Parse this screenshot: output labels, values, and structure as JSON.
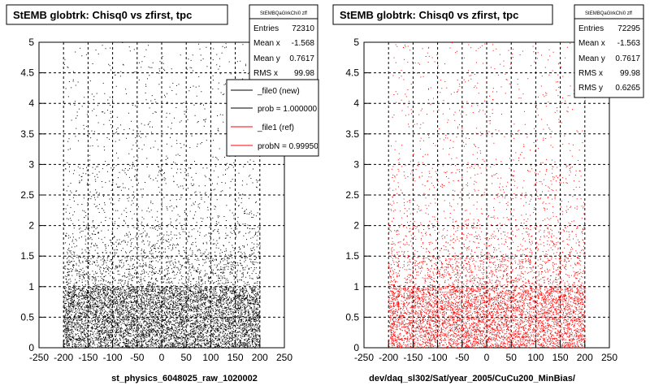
{
  "canvas_bg": "#ffffff",
  "panels": [
    {
      "title": "StEMB globtrk: Chisq0 vs zfirst, tpc",
      "footer": "st_physics_6048025_raw_1020002",
      "marker_color": "#000000",
      "stats": {
        "name": "StEMBQaGlrkChi0 zff",
        "rows": [
          {
            "label": "Entries",
            "value": "72310"
          },
          {
            "label": "Mean x",
            "value": "-1.568"
          },
          {
            "label": "Mean y",
            "value": "0.7617"
          },
          {
            "label": "RMS x",
            "value": "99.98"
          }
        ]
      },
      "legend": {
        "entries": [
          {
            "label": "_file0 (new)",
            "color": "#000000"
          },
          {
            "label": "prob = 1.000000",
            "color": "#000000"
          },
          {
            "label": "_file1 (ref)",
            "color": "#ff0000"
          },
          {
            "label": "probN = 0.999503",
            "color": "#ff0000"
          }
        ]
      }
    },
    {
      "title": "StEMB globtrk: Chisq0 vs zfirst, tpc",
      "footer": "dev/daq_sl302/Sat/year_2005/CuCu200_MinBias/",
      "marker_color": "#ff0000",
      "stats": {
        "name": "StEMBQaGlrkChi0 zff",
        "rows": [
          {
            "label": "Entries",
            "value": "72295"
          },
          {
            "label": "Mean x",
            "value": "-1.563"
          },
          {
            "label": "Mean y",
            "value": "0.7617"
          },
          {
            "label": "RMS x",
            "value": "99.98"
          },
          {
            "label": "RMS y",
            "value": "0.6265"
          }
        ]
      }
    }
  ],
  "chart_data": [
    {
      "type": "scatter",
      "title": "StEMB globtrk: Chisq0 vs zfirst, tpc",
      "xlabel": "",
      "ylabel": "",
      "xlim": [
        -250,
        250
      ],
      "ylim": [
        0,
        5
      ],
      "xticks": [
        "-250",
        "-200",
        "-150",
        "-100",
        "-50",
        "0",
        "50",
        "100",
        "150",
        "200",
        "250"
      ],
      "yticks": [
        "0",
        "0.5",
        "1",
        "1.5",
        "2",
        "2.5",
        "3",
        "3.5",
        "4",
        "4.5",
        "5"
      ],
      "grid": true,
      "legend_position": "top-right",
      "data_x_range": [
        -200,
        200
      ],
      "density_profile_y": [
        {
          "y_range": [
            0,
            1
          ],
          "relative_density": 1.0
        },
        {
          "y_range": [
            1,
            1.5
          ],
          "relative_density": 0.3
        },
        {
          "y_range": [
            1.5,
            2
          ],
          "relative_density": 0.15
        },
        {
          "y_range": [
            2,
            3
          ],
          "relative_density": 0.07
        },
        {
          "y_range": [
            3,
            5
          ],
          "relative_density": 0.03
        }
      ],
      "series": [
        {
          "name": "_file0 (new)",
          "color": "#000000",
          "entries": 72310
        }
      ]
    },
    {
      "type": "scatter",
      "title": "StEMB globtrk: Chisq0 vs zfirst, tpc",
      "xlabel": "",
      "ylabel": "",
      "xlim": [
        -250,
        250
      ],
      "ylim": [
        0,
        5
      ],
      "xticks": [
        "-250",
        "-200",
        "-150",
        "-100",
        "-50",
        "0",
        "50",
        "100",
        "150",
        "200",
        "250"
      ],
      "yticks": [
        "0",
        "0.5",
        "1",
        "1.5",
        "2",
        "2.5",
        "3",
        "3.5",
        "4",
        "4.5",
        "5"
      ],
      "grid": true,
      "data_x_range": [
        -200,
        200
      ],
      "density_profile_y": [
        {
          "y_range": [
            0,
            1
          ],
          "relative_density": 1.0
        },
        {
          "y_range": [
            1,
            1.5
          ],
          "relative_density": 0.3
        },
        {
          "y_range": [
            1.5,
            2
          ],
          "relative_density": 0.15
        },
        {
          "y_range": [
            2,
            3
          ],
          "relative_density": 0.07
        },
        {
          "y_range": [
            3,
            5
          ],
          "relative_density": 0.03
        }
      ],
      "series": [
        {
          "name": "_file1 (ref)",
          "color": "#ff0000",
          "entries": 72295
        }
      ]
    }
  ]
}
